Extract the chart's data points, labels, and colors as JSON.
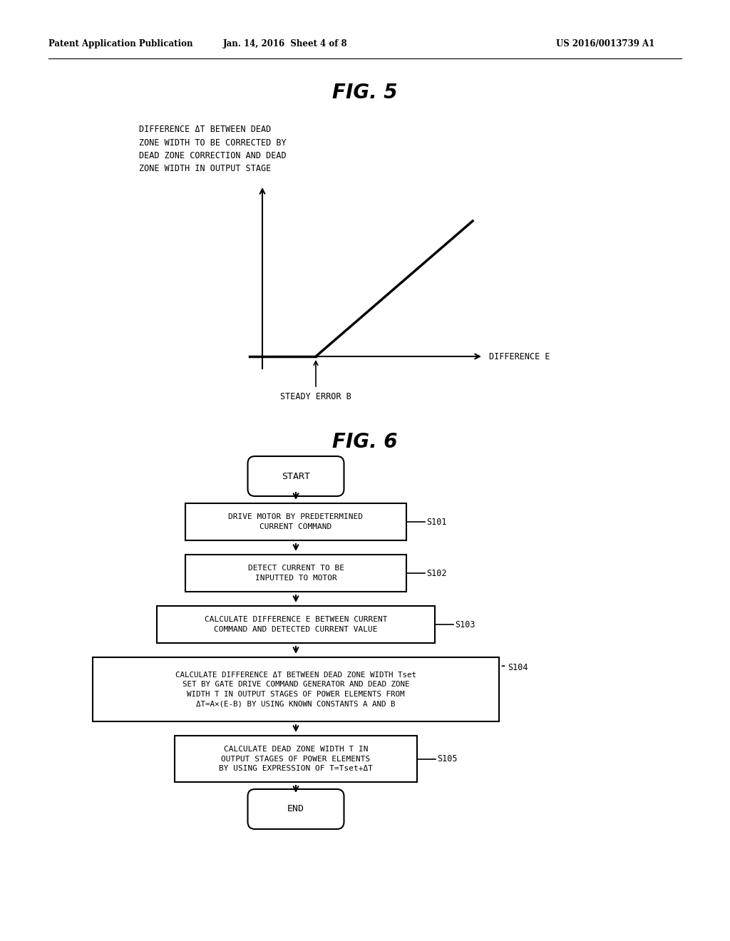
{
  "bg_color": "#ffffff",
  "header_left": "Patent Application Publication",
  "header_mid": "Jan. 14, 2016  Sheet 4 of 8",
  "header_right": "US 2016/0013739 A1",
  "fig5_title": "FIG. 5",
  "fig5_label": "DIFFERENCE ΔT BETWEEN DEAD\nZONE WIDTH TO BE CORRECTED BY\nDEAD ZONE CORRECTION AND DEAD\nZONE WIDTH IN OUTPUT STAGE",
  "fig5_xlabel": "DIFFERENCE E",
  "fig5_steady_label": "STEADY ERROR B",
  "fig6_title": "FIG. 6",
  "flowchart_steps": [
    {
      "label": "DRIVE MOTOR BY PREDETERMINED\nCURRENT COMMAND",
      "tag": "S101",
      "wide": false
    },
    {
      "label": "DETECT CURRENT TO BE\nINPUTTED TO MOTOR",
      "tag": "S102",
      "wide": false
    },
    {
      "label": "CALCULATE DIFFERENCE E BETWEEN CURRENT\nCOMMAND AND DETECTED CURRENT VALUE",
      "tag": "S103",
      "wide": false
    },
    {
      "label": "CALCULATE DIFFERENCE ΔT BETWEEN DEAD ZONE WIDTH Tset\nSET BY GATE DRIVE COMMAND GENERATOR AND DEAD ZONE\nWIDTH T IN OUTPUT STAGES OF POWER ELEMENTS FROM\nΔT=A×(E-B) BY USING KNOWN CONSTANTS A AND B",
      "tag": "S104",
      "wide": true
    },
    {
      "label": "CALCULATE DEAD ZONE WIDTH T IN\nOUTPUT STAGES OF POWER ELEMENTS\nBY USING EXPRESSION OF T=Tset+ΔT",
      "tag": "S105",
      "wide": false
    }
  ],
  "start_label": "START",
  "end_label": "END"
}
